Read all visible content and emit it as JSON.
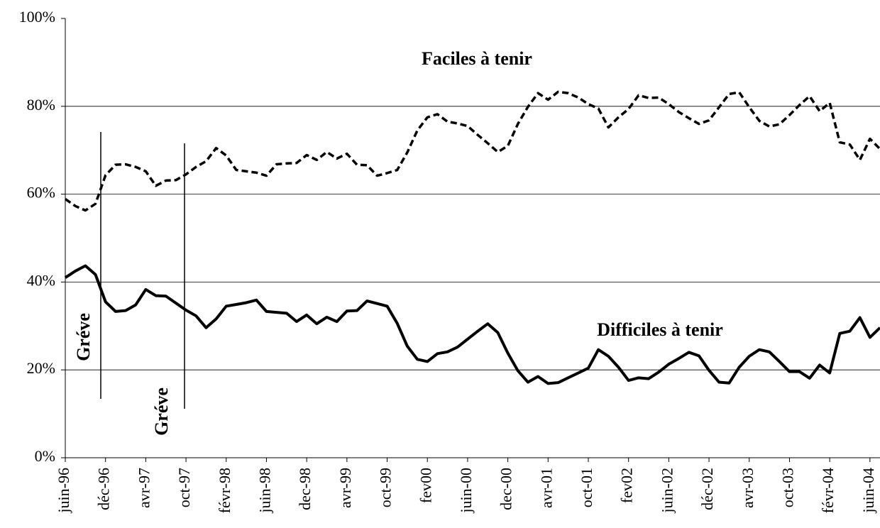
{
  "chart_data": {
    "type": "line",
    "categories": [
      "juin-96",
      null,
      null,
      null,
      "déc-96",
      null,
      null,
      null,
      "avr-97",
      null,
      null,
      null,
      "oct-97",
      null,
      null,
      null,
      "févr-98",
      null,
      null,
      null,
      "juin-98",
      null,
      null,
      null,
      "dec-98",
      null,
      null,
      null,
      "avr-99",
      null,
      null,
      null,
      "oct-99",
      null,
      null,
      null,
      "fev00",
      null,
      null,
      null,
      "juin-00",
      null,
      null,
      null,
      "dec-00",
      null,
      null,
      null,
      "avr-01",
      null,
      null,
      null,
      "oct-01",
      null,
      null,
      null,
      "fev02",
      null,
      null,
      null,
      "juin-02",
      null,
      null,
      null,
      "déc-02",
      null,
      null,
      null,
      "avr-03",
      null,
      null,
      null,
      "oct-03",
      null,
      null,
      null,
      "févr-04",
      null,
      null,
      null,
      "juin-04",
      null
    ],
    "series": [
      {
        "name": "Faciles à tenir",
        "color": "#000000",
        "line_style": "dashed",
        "values": [
          58.9,
          57.3,
          56.3,
          57.8,
          64.3,
          66.7,
          66.8,
          66.2,
          65.2,
          61.9,
          63.1,
          63.2,
          64.5,
          66.2,
          67.5,
          70.5,
          68.8,
          65.5,
          65.2,
          64.9,
          64.2,
          66.8,
          67.0,
          67.1,
          68.9,
          67.8,
          69.6,
          68.1,
          69.2,
          66.7,
          66.6,
          64.2,
          64.8,
          65.5,
          69.5,
          74.5,
          77.5,
          78.2,
          76.5,
          76.1,
          75.5,
          73.5,
          71.6,
          69.6,
          71.0,
          76.0,
          79.9,
          83.0,
          81.5,
          83.3,
          83.0,
          82.0,
          80.5,
          79.5,
          75.2,
          77.5,
          79.4,
          82.5,
          81.9,
          82.0,
          80.5,
          78.7,
          77.3,
          76.0,
          76.8,
          79.8,
          82.8,
          83.2,
          79.8,
          76.7,
          75.4,
          75.9,
          78.0,
          80.3,
          82.3,
          78.9,
          80.8,
          71.8,
          71.3,
          67.8,
          72.6,
          70.3
        ]
      },
      {
        "name": "Difficiles à tenir",
        "color": "#000000",
        "line_style": "solid",
        "values": [
          41.0,
          42.5,
          43.7,
          41.7,
          35.5,
          33.3,
          33.5,
          34.8,
          38.3,
          36.9,
          36.8,
          35.2,
          33.6,
          32.3,
          29.6,
          31.6,
          34.5,
          34.9,
          35.3,
          35.9,
          33.3,
          33.1,
          32.9,
          31.0,
          32.5,
          30.5,
          32.0,
          31.0,
          33.4,
          33.5,
          35.7,
          35.1,
          34.5,
          30.6,
          25.4,
          22.4,
          21.9,
          23.7,
          24.1,
          25.2,
          27.0,
          28.8,
          30.5,
          28.5,
          23.8,
          19.8,
          17.2,
          18.5,
          16.9,
          17.1,
          18.2,
          19.3,
          20.4,
          24.6,
          23.1,
          20.6,
          17.6,
          18.2,
          18.0,
          19.5,
          21.3,
          22.6,
          24.0,
          23.2,
          19.9,
          17.2,
          17.0,
          20.6,
          23.1,
          24.6,
          24.1,
          21.9,
          19.6,
          19.6,
          18.1,
          21.1,
          19.3,
          28.3,
          28.8,
          31.9,
          27.4,
          29.6
        ]
      }
    ],
    "annotations": [
      "Gréve",
      "Gréve"
    ],
    "ylim": [
      0,
      100
    ],
    "yticks": [
      {
        "value": 0,
        "label": "0%"
      },
      {
        "value": 20,
        "label": "20%"
      },
      {
        "value": 40,
        "label": "40%"
      },
      {
        "value": 60,
        "label": "60%"
      },
      {
        "value": 80,
        "label": "80%"
      },
      {
        "value": 100,
        "label": "100%"
      }
    ],
    "grid": true
  }
}
